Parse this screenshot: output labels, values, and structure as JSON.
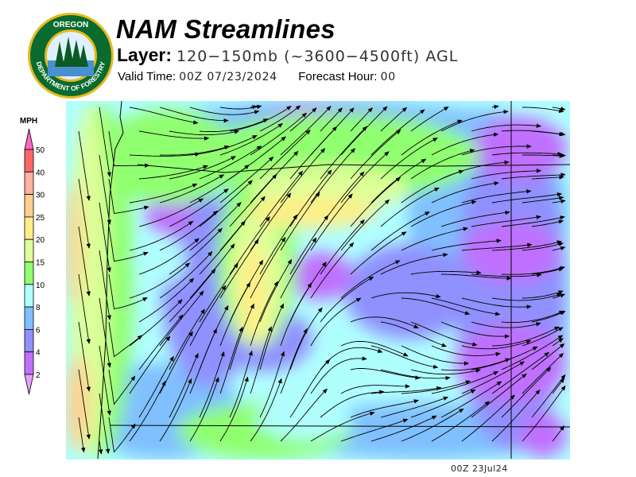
{
  "header": {
    "title": "NAM Streamlines",
    "layer_label": "Layer:",
    "layer_value": "120−150mb (~3600−4500ft) AGL",
    "valid_time_label": "Valid Time:",
    "valid_time_value": "00Z 07/23/2024",
    "forecast_hour_label": "Forecast Hour:",
    "forecast_hour_value": "00"
  },
  "logo": {
    "text_top": "OREGON",
    "text_ring": "DEPARTMENT OF FORESTRY",
    "colors": {
      "ring": "#0a6b2e",
      "gold": "#e8b820"
    }
  },
  "legend": {
    "unit": "MPH",
    "ticks": [
      "50",
      "40",
      "30",
      "25",
      "20",
      "15",
      "10",
      "8",
      "6",
      "4",
      "2"
    ],
    "colors": [
      "#ff66c4",
      "#ff6666",
      "#ffb0a0",
      "#ffd090",
      "#ffee88",
      "#ddff99",
      "#90ff70",
      "#b0ffff",
      "#80c0ff",
      "#9090ff",
      "#c070ff",
      "#e8a0ff"
    ]
  },
  "map": {
    "field": "wind speed (MPH) with streamlines",
    "footer_stamp": "00Z 23Jul24"
  }
}
